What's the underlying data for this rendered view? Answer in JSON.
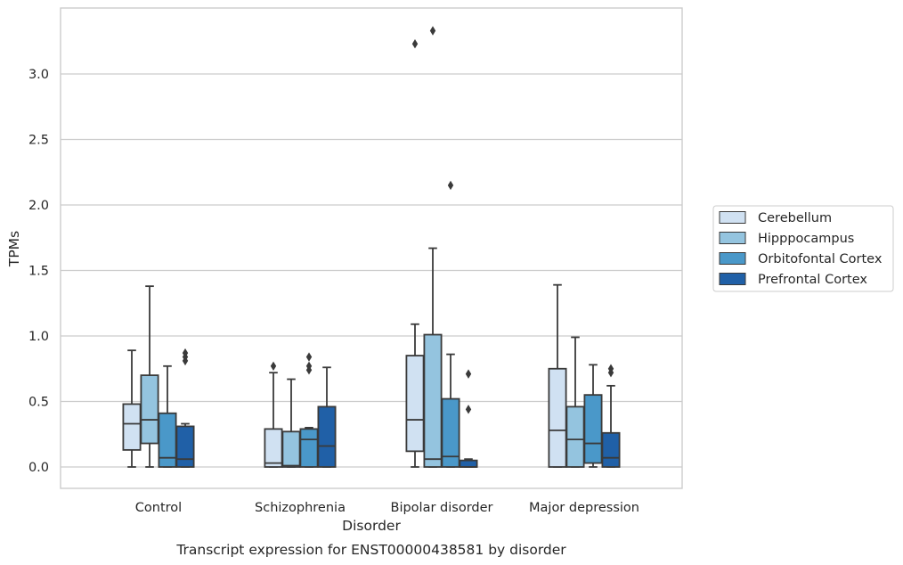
{
  "chart_data": {
    "type": "box",
    "title": "",
    "caption": "Transcript expression for ENST00000438581 by disorder",
    "xlabel": "Disorder",
    "ylabel": "TPMs",
    "ylim": [
      -0.16,
      3.43
    ],
    "yticks": [
      0.0,
      0.5,
      1.0,
      1.5,
      2.0,
      2.5,
      3.0
    ],
    "ytick_labels": [
      "0.0",
      "0.5",
      "1.0",
      "1.5",
      "2.0",
      "2.5",
      "3.0"
    ],
    "grid": "horizontal",
    "legend_position": "right",
    "categories": [
      "Control",
      "Schizophrenia",
      "Bipolar disorder",
      "Major depression"
    ],
    "series": [
      {
        "name": "Cerebellum",
        "color": "#d0e1f2",
        "boxes": [
          {
            "whislo": 0.0,
            "q1": 0.13,
            "med": 0.33,
            "q3": 0.48,
            "whishi": 0.89,
            "fliers": []
          },
          {
            "whislo": 0.0,
            "q1": 0.0,
            "med": 0.03,
            "q3": 0.29,
            "whishi": 0.72,
            "fliers": [
              0.77
            ]
          },
          {
            "whislo": 0.0,
            "q1": 0.12,
            "med": 0.36,
            "q3": 0.85,
            "whishi": 1.09,
            "fliers": [
              3.23
            ]
          },
          {
            "whislo": 0.0,
            "q1": 0.0,
            "med": 0.28,
            "q3": 0.75,
            "whishi": 1.39,
            "fliers": []
          }
        ]
      },
      {
        "name": "Hipppocampus",
        "color": "#94c4df",
        "boxes": [
          {
            "whislo": 0.0,
            "q1": 0.18,
            "med": 0.36,
            "q3": 0.7,
            "whishi": 1.38,
            "fliers": []
          },
          {
            "whislo": 0.0,
            "q1": 0.0,
            "med": 0.01,
            "q3": 0.27,
            "whishi": 0.67,
            "fliers": []
          },
          {
            "whislo": 0.0,
            "q1": 0.0,
            "med": 0.06,
            "q3": 1.01,
            "whishi": 1.67,
            "fliers": [
              3.33
            ]
          },
          {
            "whislo": 0.0,
            "q1": 0.0,
            "med": 0.21,
            "q3": 0.46,
            "whishi": 0.99,
            "fliers": []
          }
        ]
      },
      {
        "name": "Orbitofontal Cortex",
        "color": "#4a98c9",
        "boxes": [
          {
            "whislo": 0.0,
            "q1": 0.0,
            "med": 0.07,
            "q3": 0.41,
            "whishi": 0.77,
            "fliers": []
          },
          {
            "whislo": 0.0,
            "q1": 0.0,
            "med": 0.21,
            "q3": 0.29,
            "whishi": 0.3,
            "fliers": [
              0.74,
              0.77,
              0.84
            ]
          },
          {
            "whislo": 0.0,
            "q1": 0.0,
            "med": 0.08,
            "q3": 0.52,
            "whishi": 0.86,
            "fliers": [
              2.15
            ]
          },
          {
            "whislo": 0.0,
            "q1": 0.03,
            "med": 0.18,
            "q3": 0.55,
            "whishi": 0.78,
            "fliers": []
          }
        ]
      },
      {
        "name": "Prefrontal Cortex",
        "color": "#2060a7",
        "boxes": [
          {
            "whislo": 0.0,
            "q1": 0.0,
            "med": 0.06,
            "q3": 0.31,
            "whishi": 0.33,
            "fliers": [
              0.81,
              0.84,
              0.87
            ]
          },
          {
            "whislo": 0.0,
            "q1": 0.0,
            "med": 0.16,
            "q3": 0.46,
            "whishi": 0.76,
            "fliers": []
          },
          {
            "whislo": 0.0,
            "q1": 0.0,
            "med": 0.0,
            "q3": 0.05,
            "whishi": 0.06,
            "fliers": [
              0.44,
              0.71
            ]
          },
          {
            "whislo": 0.0,
            "q1": 0.0,
            "med": 0.07,
            "q3": 0.26,
            "whishi": 0.62,
            "fliers": [
              0.72,
              0.75
            ]
          }
        ]
      }
    ]
  }
}
